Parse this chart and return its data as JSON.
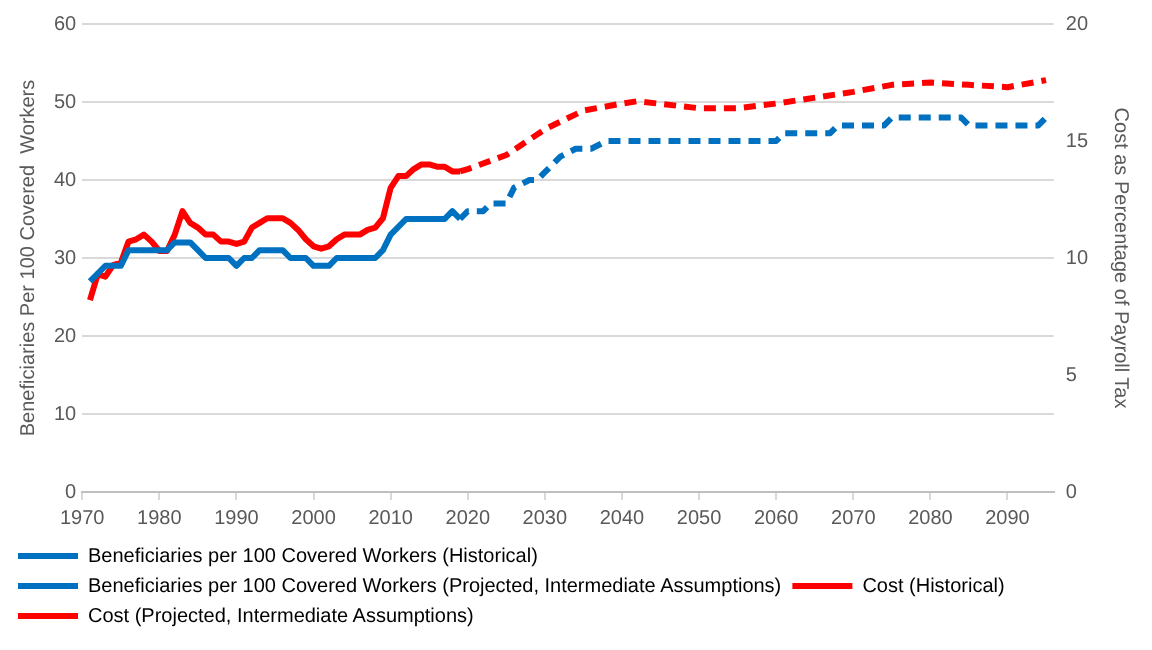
{
  "chart_data": {
    "type": "line",
    "ylabel": "Beneficiaries Per 100 Covered  Workers",
    "y2label": "Cost as Percentage of Payroll Tax",
    "xlim": [
      1970,
      2096
    ],
    "xticks": [
      1970,
      1980,
      1990,
      2000,
      2010,
      2020,
      2030,
      2040,
      2050,
      2060,
      2070,
      2080,
      2090
    ],
    "ylim": [
      0,
      60
    ],
    "yticks": [
      0,
      10,
      20,
      30,
      40,
      50,
      60
    ],
    "y2lim": [
      0,
      20
    ],
    "y2ticks": [
      0,
      5,
      10,
      15,
      20
    ],
    "grid": "y",
    "legend": "bottom",
    "marker": "none",
    "series": [
      {
        "name": "Beneficiaries per 100 Covered Workers (Historical)",
        "color": "#0070c0",
        "line_style": "solid",
        "x": [
          1971,
          1972,
          1973,
          1974,
          1975,
          1976,
          1977,
          1978,
          1979,
          1980,
          1981,
          1982,
          1983,
          1984,
          1985,
          1986,
          1987,
          1988,
          1989,
          1990,
          1991,
          1992,
          1993,
          1994,
          1995,
          1996,
          1997,
          1998,
          1999,
          2000,
          2001,
          2002,
          2003,
          2004,
          2005,
          2006,
          2007,
          2008,
          2009,
          2010,
          2011,
          2012,
          2013,
          2014,
          2015,
          2016,
          2017,
          2018,
          2019
        ],
        "values": [
          27,
          28,
          29,
          29,
          29,
          31,
          31,
          31,
          31,
          31,
          31,
          32,
          32,
          32,
          31,
          30,
          30,
          30,
          30,
          29,
          30,
          30,
          31,
          31,
          31,
          31,
          30,
          30,
          30,
          29,
          29,
          29,
          30,
          30,
          30,
          30,
          30,
          30,
          31,
          33,
          34,
          35,
          35,
          35,
          35,
          35,
          35,
          36,
          35
        ]
      },
      {
        "name": "Beneficiaries per 100 Covered Workers (Projected, Intermediate Assumptions)",
        "color": "#0070c0",
        "line_style": "dashed",
        "x": [
          2019,
          2020,
          2022,
          2023,
          2025,
          2026,
          2028,
          2029,
          2030,
          2031,
          2032,
          2034,
          2036,
          2038,
          2060,
          2061,
          2067,
          2068,
          2074,
          2075,
          2084,
          2085,
          2094,
          2095
        ],
        "values": [
          35,
          36,
          36,
          37,
          37,
          39,
          40,
          40,
          41,
          42,
          43,
          44,
          44,
          45,
          45,
          46,
          46,
          47,
          47,
          48,
          48,
          47,
          47,
          48
        ]
      },
      {
        "name": "Cost (Historical)",
        "color": "#ff0000",
        "line_style": "solid",
        "axis": "y2",
        "x": [
          1971,
          1972,
          1973,
          1974,
          1975,
          1976,
          1977,
          1978,
          1979,
          1980,
          1981,
          1982,
          1983,
          1984,
          1985,
          1986,
          1987,
          1988,
          1989,
          1990,
          1991,
          1992,
          1993,
          1994,
          1995,
          1996,
          1997,
          1998,
          1999,
          2000,
          2001,
          2002,
          2003,
          2004,
          2005,
          2006,
          2007,
          2008,
          2009,
          2010,
          2011,
          2012,
          2013,
          2014,
          2015,
          2016,
          2017,
          2018,
          2019
        ],
        "values": [
          8.2,
          9.3,
          9.2,
          9.7,
          9.8,
          10.7,
          10.8,
          11.0,
          10.7,
          10.3,
          10.3,
          11.0,
          12.0,
          11.5,
          11.3,
          11.0,
          11.0,
          10.7,
          10.7,
          10.6,
          10.7,
          11.3,
          11.5,
          11.7,
          11.7,
          11.7,
          11.5,
          11.2,
          10.8,
          10.5,
          10.4,
          10.5,
          10.8,
          11.0,
          11.0,
          11.0,
          11.2,
          11.3,
          11.7,
          13.0,
          13.5,
          13.5,
          13.8,
          14.0,
          14.0,
          13.9,
          13.9,
          13.7,
          13.7
        ]
      },
      {
        "name": "Cost (Projected, Intermediate Assumptions)",
        "color": "#ff0000",
        "line_style": "dashed",
        "axis": "y2",
        "x": [
          2019,
          2020,
          2025,
          2030,
          2035,
          2040,
          2042,
          2050,
          2055,
          2060,
          2070,
          2075,
          2080,
          2085,
          2090,
          2095
        ],
        "values": [
          13.7,
          13.8,
          14.4,
          15.5,
          16.3,
          16.6,
          16.7,
          16.4,
          16.4,
          16.6,
          17.1,
          17.4,
          17.5,
          17.4,
          17.3,
          17.6
        ]
      }
    ]
  }
}
